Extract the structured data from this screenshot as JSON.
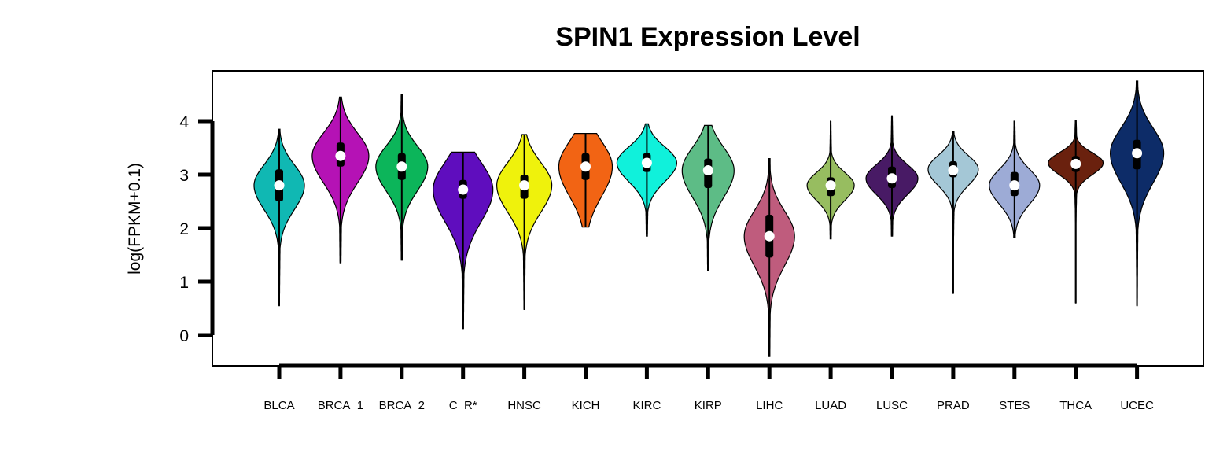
{
  "chart_data": {
    "type": "violin",
    "title": "SPIN1 Expression Level",
    "ylabel": "log(FPKM+0.1)",
    "xlabel": "",
    "ylim": [
      -0.6,
      4.9
    ],
    "yticks": [
      0,
      1,
      2,
      3,
      4
    ],
    "grid": false,
    "legend": "none",
    "categories": [
      "BLCA",
      "BRCA_1",
      "BRCA_2",
      "C_R*",
      "HNSC",
      "KICH",
      "KIRC",
      "KIRP",
      "LIHC",
      "LUAD",
      "LUSC",
      "PRAD",
      "STES",
      "THCA",
      "UCEC"
    ],
    "series": [
      {
        "category": "BLCA",
        "color": "#10B8B3",
        "min": 0.55,
        "max": 3.85,
        "q1": 2.5,
        "median": 2.8,
        "q3": 3.1,
        "peak": 2.8,
        "spread": 0.45,
        "maxwidth": 32
      },
      {
        "category": "BRCA_1",
        "color": "#B512B5",
        "min": 1.35,
        "max": 4.45,
        "q1": 3.15,
        "median": 3.35,
        "q3": 3.6,
        "peak": 3.35,
        "spread": 0.5,
        "maxwidth": 36
      },
      {
        "category": "BRCA_2",
        "color": "#0CB55A",
        "min": 1.4,
        "max": 4.5,
        "q1": 2.9,
        "median": 3.15,
        "q3": 3.4,
        "peak": 3.15,
        "spread": 0.45,
        "maxwidth": 33
      },
      {
        "category": "C_R*",
        "color": "#5F0DBE",
        "min": 0.12,
        "max": 3.42,
        "q1": 2.55,
        "median": 2.72,
        "q3": 2.9,
        "peak": 2.72,
        "spread": 0.6,
        "maxwidth": 38
      },
      {
        "category": "HNSC",
        "color": "#EFF20C",
        "min": 0.48,
        "max": 3.75,
        "q1": 2.55,
        "median": 2.8,
        "q3": 3.0,
        "peak": 2.8,
        "spread": 0.5,
        "maxwidth": 35
      },
      {
        "category": "KICH",
        "color": "#F26414",
        "min": 2.02,
        "max": 3.77,
        "q1": 2.9,
        "median": 3.15,
        "q3": 3.4,
        "peak": 3.15,
        "spread": 0.55,
        "maxwidth": 34
      },
      {
        "category": "KIRC",
        "color": "#10F1DB",
        "min": 1.85,
        "max": 3.95,
        "q1": 3.05,
        "median": 3.22,
        "q3": 3.4,
        "peak": 3.22,
        "spread": 0.35,
        "maxwidth": 38
      },
      {
        "category": "KIRP",
        "color": "#5DBC86",
        "min": 1.2,
        "max": 3.92,
        "q1": 2.75,
        "median": 3.08,
        "q3": 3.3,
        "peak": 3.08,
        "spread": 0.5,
        "maxwidth": 33
      },
      {
        "category": "LIHC",
        "color": "#BF5C7D",
        "min": -0.4,
        "max": 3.3,
        "q1": 1.45,
        "median": 1.85,
        "q3": 2.25,
        "peak": 1.85,
        "spread": 0.55,
        "maxwidth": 32
      },
      {
        "category": "LUAD",
        "color": "#97BD60",
        "min": 1.8,
        "max": 4.0,
        "q1": 2.6,
        "median": 2.8,
        "q3": 2.95,
        "peak": 2.8,
        "spread": 0.28,
        "maxwidth": 30
      },
      {
        "category": "LUSC",
        "color": "#481A65",
        "min": 1.85,
        "max": 4.1,
        "q1": 2.75,
        "median": 2.93,
        "q3": 3.15,
        "peak": 2.93,
        "spread": 0.3,
        "maxwidth": 33
      },
      {
        "category": "PRAD",
        "color": "#A4C7D6",
        "min": 0.78,
        "max": 3.8,
        "q1": 2.95,
        "median": 3.08,
        "q3": 3.25,
        "peak": 3.1,
        "spread": 0.3,
        "maxwidth": 32
      },
      {
        "category": "STES",
        "color": "#9DABD6",
        "min": 1.82,
        "max": 4.0,
        "q1": 2.6,
        "median": 2.8,
        "q3": 3.05,
        "peak": 2.8,
        "spread": 0.35,
        "maxwidth": 32
      },
      {
        "category": "THCA",
        "color": "#6A210E",
        "min": 0.6,
        "max": 4.02,
        "q1": 3.05,
        "median": 3.2,
        "q3": 3.35,
        "peak": 3.22,
        "spread": 0.22,
        "maxwidth": 35
      },
      {
        "category": "UCEC",
        "color": "#0D2C68",
        "min": 0.55,
        "max": 4.75,
        "q1": 3.1,
        "median": 3.4,
        "q3": 3.65,
        "peak": 3.4,
        "spread": 0.55,
        "maxwidth": 34
      }
    ]
  }
}
